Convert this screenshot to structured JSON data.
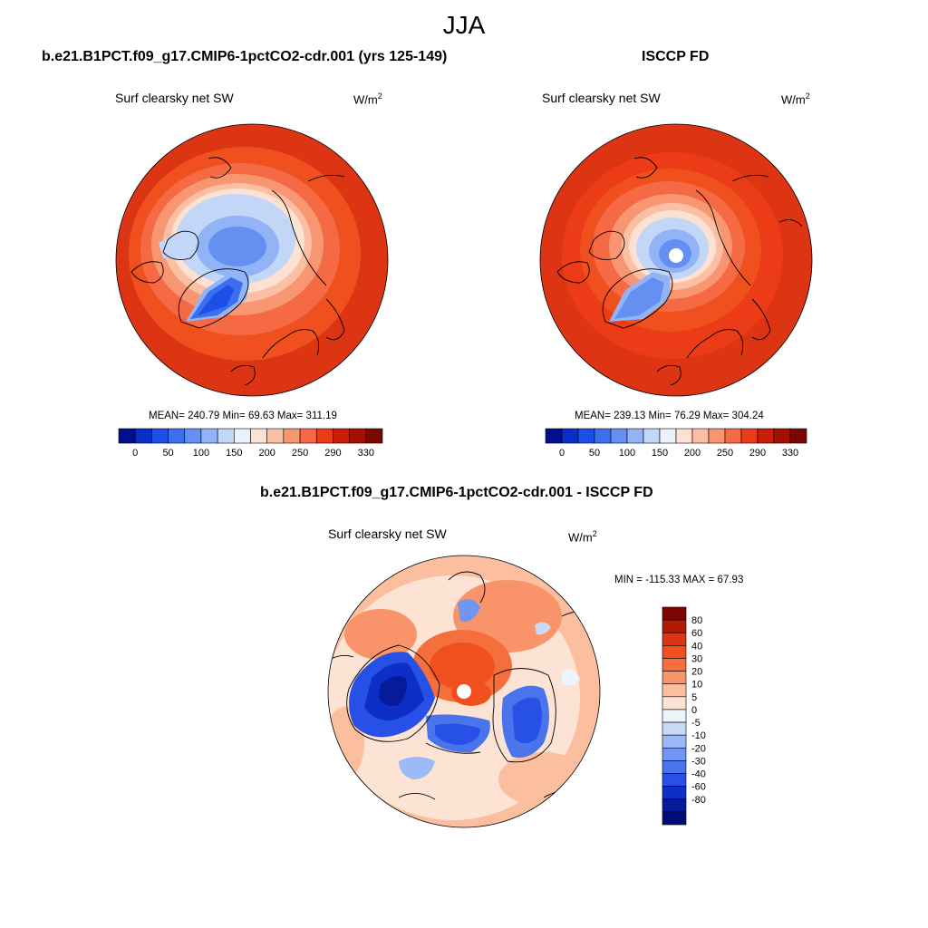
{
  "season": "JJA",
  "palette": [
    "#040e8a",
    "#0a2fc7",
    "#1c4fe6",
    "#3b6ff0",
    "#6490f2",
    "#92b3f5",
    "#c2d6f8",
    "#ebf2fb",
    "#fde1d2",
    "#fbbfa3",
    "#f99672",
    "#f56a45",
    "#eb3b17",
    "#c91d08",
    "#a51004",
    "#7d0500"
  ],
  "colorbar_top": {
    "ticks": [
      "0",
      "50",
      "100",
      "150",
      "200",
      "250",
      "290",
      "330"
    ]
  },
  "diff_palette": [
    "#7d0500",
    "#b31a04",
    "#dd3414",
    "#f0501e",
    "#f56f3c",
    "#f9946a",
    "#fbbf9f",
    "#fde3d3",
    "#eef4fb",
    "#c8daf8",
    "#9cbaf5",
    "#7196f1",
    "#4a74ec",
    "#2650e6",
    "#0d2fc7",
    "#051b9c",
    "#020c78"
  ],
  "colorbar_diff": {
    "ticks": [
      "80",
      "60",
      "40",
      "30",
      "20",
      "10",
      "5",
      "0",
      "-5",
      "-10",
      "-20",
      "-30",
      "-40",
      "-60",
      "-80"
    ]
  },
  "panels": [
    {
      "title": "b.e21.B1PCT.f09_g17.CMIP6-1pctCO2-cdr.001 (yrs 125-149)",
      "subtitle": "Surf clearsky net SW",
      "units_base": "W/m",
      "units_sup": "2",
      "stats": "MEAN= 240.79  Min=  69.63  Max= 311.19"
    },
    {
      "title": "ISCCP FD",
      "subtitle": "Surf clearsky net SW",
      "units_base": "W/m",
      "units_sup": "2",
      "stats": "MEAN= 239.13  Min=  76.29  Max= 304.24"
    },
    {
      "title": "b.e21.B1PCT.f09_g17.CMIP6-1pctCO2-cdr.001 - ISCCP FD",
      "subtitle": "Surf clearsky net SW",
      "units_base": "W/m",
      "units_sup": "2",
      "stats": "MIN = -115.33 MAX =  67.93"
    }
  ]
}
